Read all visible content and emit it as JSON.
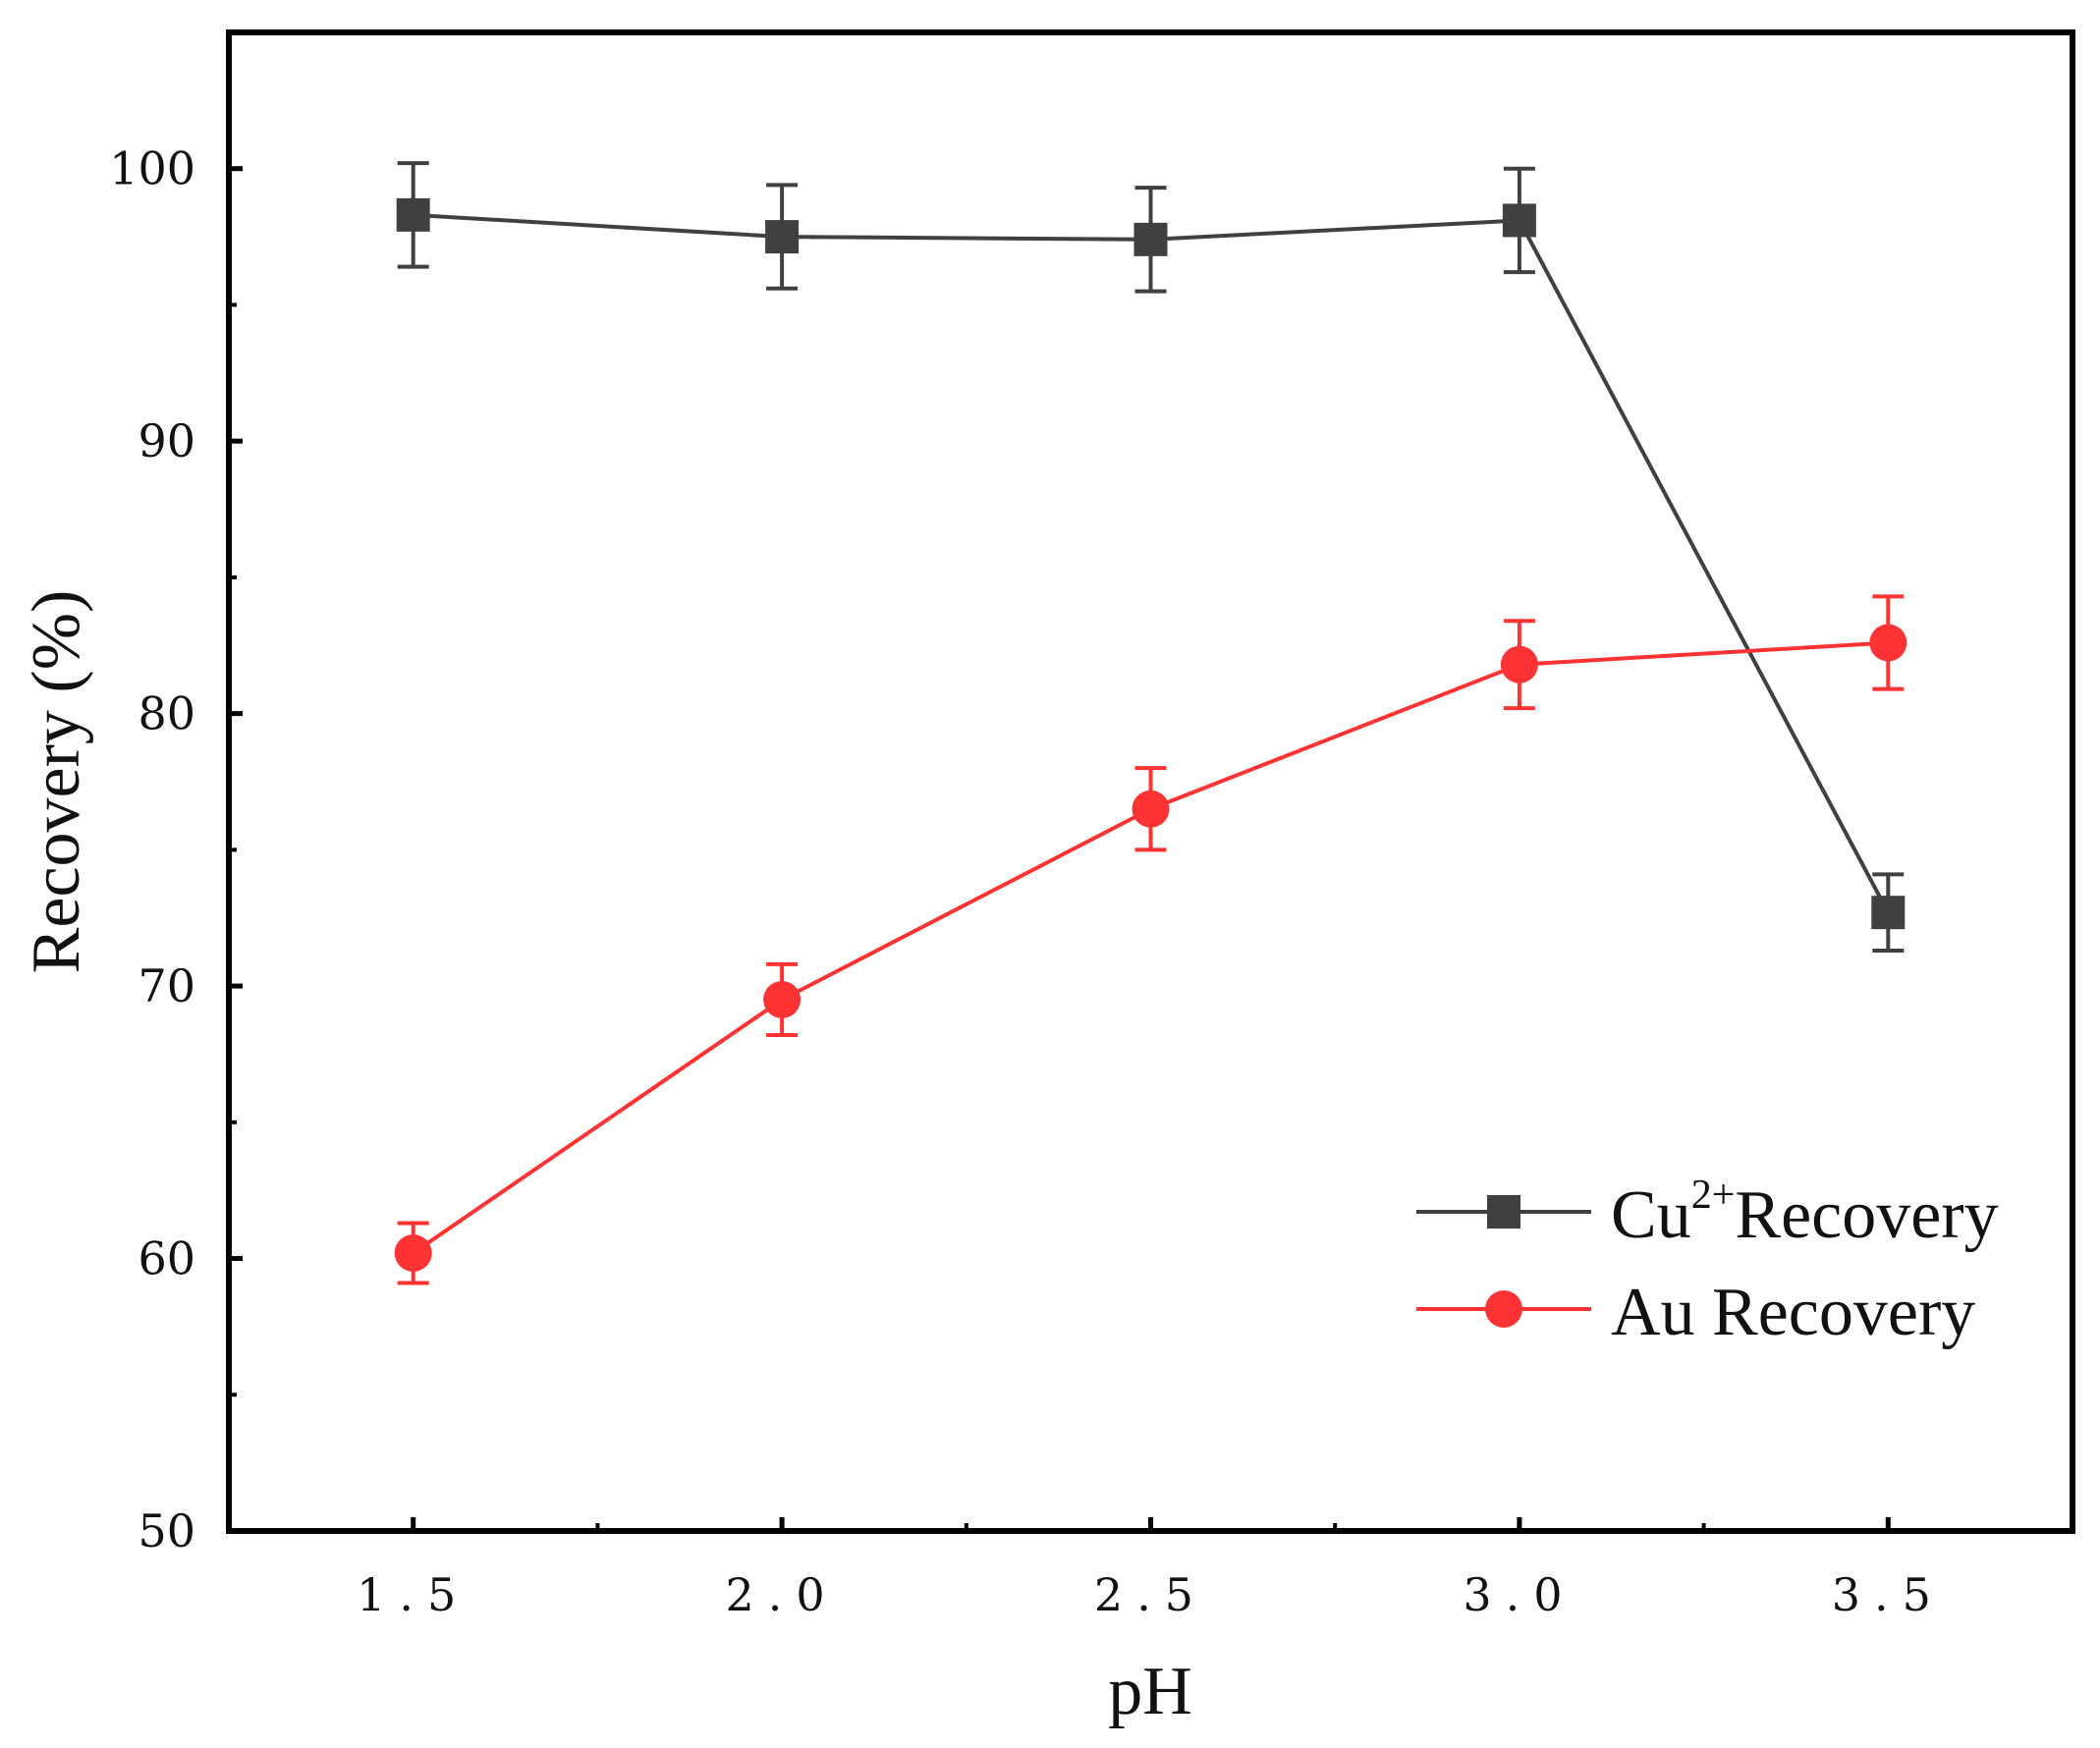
{
  "chart_data": {
    "type": "line",
    "title": "",
    "xlabel": "pH",
    "ylabel": "Recovery (%)",
    "xlim": [
      1.25,
      3.75
    ],
    "ylim": [
      50,
      105
    ],
    "x_ticks": [
      "1.5",
      "2.0",
      "2.5",
      "3.0",
      "3.5"
    ],
    "y_ticks": [
      "50",
      "60",
      "70",
      "80",
      "90",
      "100"
    ],
    "grid": false,
    "legend_position": "bottom-right",
    "x": [
      1.5,
      2.0,
      2.5,
      3.0,
      3.5
    ],
    "series": [
      {
        "name": "Cu2+Recovery",
        "label_base": "Cu",
        "label_sup": "2+",
        "label_rest": "Recovery",
        "color": "#404040",
        "marker": "square",
        "values": [
          98.3,
          97.5,
          97.4,
          98.1,
          72.7
        ],
        "errors": [
          1.9,
          1.9,
          1.9,
          1.9,
          1.4
        ]
      },
      {
        "name": "Au Recovery",
        "label_base": "Au Recovery",
        "color": "#ff3333",
        "marker": "circle",
        "values": [
          60.2,
          69.5,
          76.5,
          81.8,
          82.6
        ],
        "errors": [
          1.1,
          1.3,
          1.5,
          1.6,
          1.7
        ]
      }
    ]
  }
}
